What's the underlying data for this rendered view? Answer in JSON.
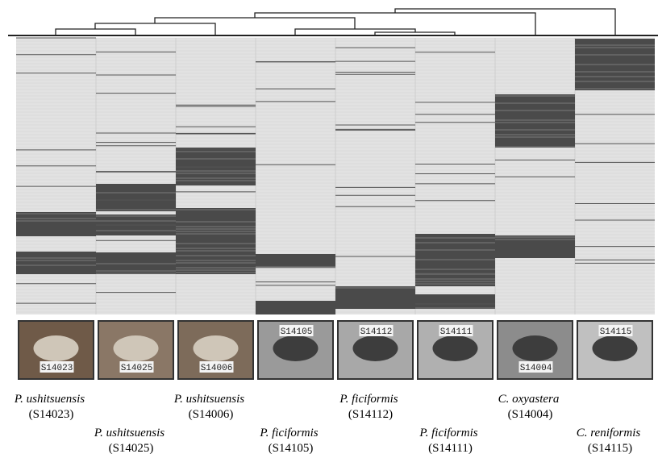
{
  "specimens": [
    {
      "species": "P. ushitsuensis",
      "code": "(S14023)",
      "photo_label": "S14023"
    },
    {
      "species": "P. ushitsuensis",
      "code": "(S14025)",
      "photo_label": "S14025"
    },
    {
      "species": "P. ushitsuensis",
      "code": "(S14006)",
      "photo_label": "S14006"
    },
    {
      "species": "P. ficiformis",
      "code": "(S14105)",
      "photo_label": "S14105"
    },
    {
      "species": "P. ficiformis",
      "code": "(S14112)",
      "photo_label": "S14112"
    },
    {
      "species": "P. ficiformis",
      "code": "(S14111)",
      "photo_label": "S14111"
    },
    {
      "species": "C. oxyastera",
      "code": "(S14004)",
      "photo_label": "S14004"
    },
    {
      "species": "C. reniformis",
      "code": "(S14115)",
      "photo_label": "S14115"
    }
  ]
}
